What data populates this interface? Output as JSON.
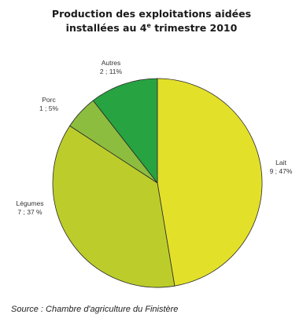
{
  "chart_data": {
    "type": "pie",
    "title_line1": "Production des exploitations aidées",
    "title_line2_pre": "installées au 4",
    "title_line2_sup": "e",
    "title_line2_post": " trimestre 2010",
    "slices": [
      {
        "name": "Lait",
        "value": 9,
        "label": "9 ; 47%",
        "color": "#e3e02a"
      },
      {
        "name": "Légumes",
        "value": 7,
        "label": "7 ; 37 %",
        "color": "#bccd2b"
      },
      {
        "name": "Porc",
        "value": 1,
        "label": "1 ; 5%",
        "color": "#8dbd3e"
      },
      {
        "name": "Autres",
        "value": 2,
        "label": "2 ; 11%",
        "color": "#27a342"
      }
    ]
  },
  "source": "Source : Chambre d'agriculture du Finistère"
}
